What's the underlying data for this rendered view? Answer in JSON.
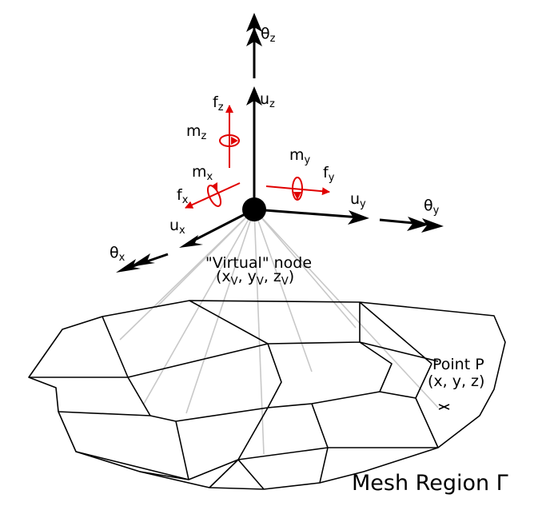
{
  "labels": {
    "theta_z": "θ",
    "theta_z_sub": "z",
    "u_z": "u",
    "u_z_sub": "z",
    "f_z": "f",
    "f_z_sub": "z",
    "m_z": "m",
    "m_z_sub": "z",
    "m_x": "m",
    "m_x_sub": "x",
    "f_x": "f",
    "f_x_sub": "x",
    "u_x": "u",
    "u_x_sub": "x",
    "theta_x": "θ",
    "theta_x_sub": "x",
    "m_y": "m",
    "m_y_sub": "y",
    "f_y": "f",
    "f_y_sub": "y",
    "u_y": "u",
    "u_y_sub": "y",
    "theta_y": "θ",
    "theta_y_sub": "y",
    "virtual_node": "\"Virtual\" node",
    "virtual_coords_open": "(x",
    "virtual_coords_xv": "V",
    "virtual_coords_mid1": ", y",
    "virtual_coords_yv": "V",
    "virtual_coords_mid2": ", z",
    "virtual_coords_zv": "V",
    "virtual_coords_close": ")",
    "point_p": "Point P",
    "point_p_coords": "(x, y, z)",
    "mesh_region": "Mesh Region Γ"
  },
  "colors": {
    "force_moment": "#e00000",
    "displacement_rotation": "#000000",
    "connector_rays": "#c8c8c8"
  }
}
